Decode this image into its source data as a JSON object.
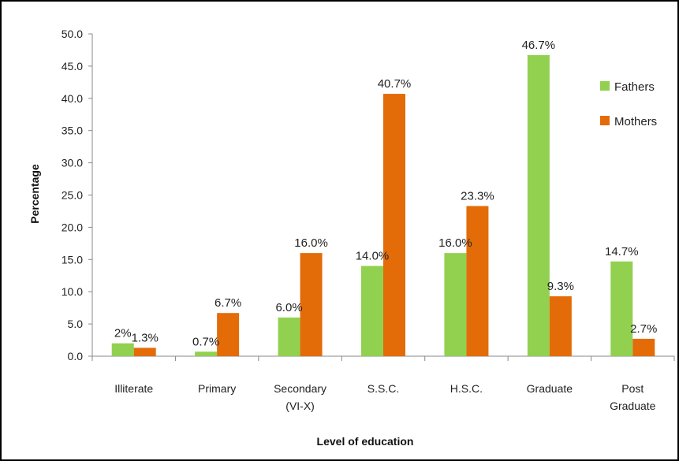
{
  "chart_data": {
    "type": "bar",
    "title": "",
    "xlabel": "Level of education",
    "ylabel": "Percentage",
    "ylim": [
      0,
      50
    ],
    "yticks": [
      "0.0",
      "5.0",
      "10.0",
      "15.0",
      "20.0",
      "25.0",
      "30.0",
      "35.0",
      "40.0",
      "45.0",
      "50.0"
    ],
    "grid": false,
    "legend_position": "right",
    "categories": [
      [
        "Illiterate"
      ],
      [
        "Primary"
      ],
      [
        "Secondary",
        "(VI-X)"
      ],
      [
        "S.S.C."
      ],
      [
        "H.S.C."
      ],
      [
        "Graduate"
      ],
      [
        "Post",
        "Graduate"
      ]
    ],
    "series": [
      {
        "name": "Fathers",
        "color": "#92D050",
        "values": [
          2.0,
          0.7,
          6.0,
          14.0,
          16.0,
          46.7,
          14.7
        ],
        "labels": [
          "2%",
          "0.7%",
          "6.0%",
          "14.0%",
          "16.0%",
          "46.7%",
          "14.7%"
        ]
      },
      {
        "name": "Mothers",
        "color": "#E36C09",
        "values": [
          1.3,
          6.7,
          16.0,
          40.7,
          23.3,
          9.3,
          2.7
        ],
        "labels": [
          "1.3%",
          "6.7%",
          "16.0%",
          "40.7%",
          "23.3%",
          "9.3%",
          "2.7%"
        ]
      }
    ]
  }
}
